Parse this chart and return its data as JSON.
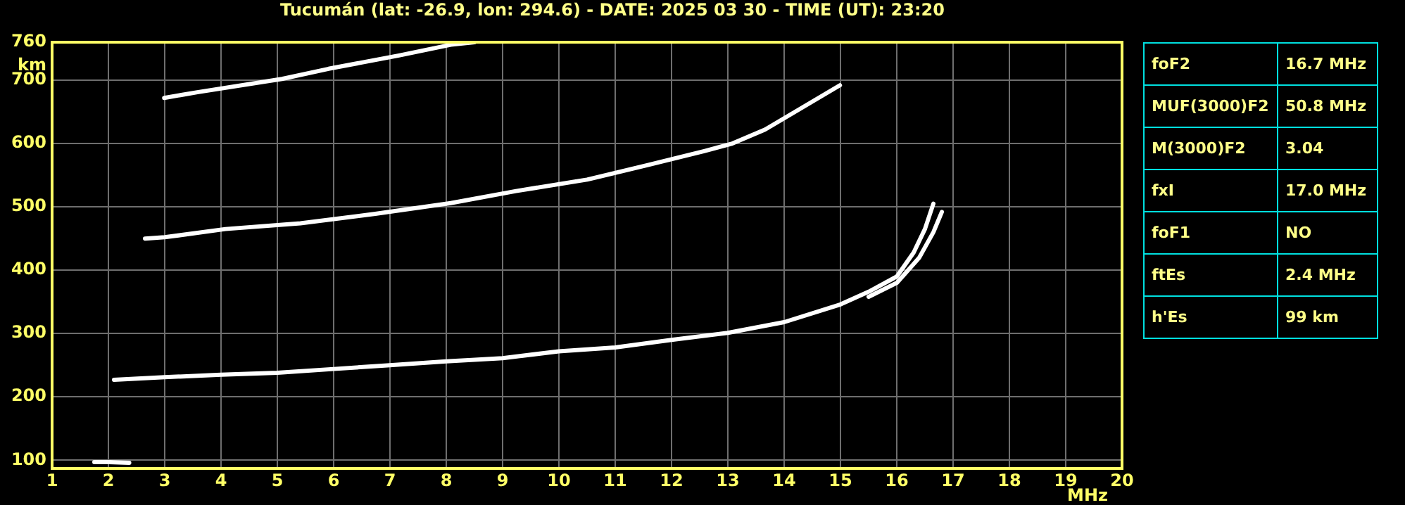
{
  "chart_data": {
    "type": "line",
    "title": "Tucumán (lat: -26.9, lon: 294.6) - DATE: 2025 03 30 - TIME (UT): 23:20",
    "xlabel": "MHz",
    "ylabel": "km",
    "xlim": [
      1,
      20
    ],
    "xticks": [
      1,
      2,
      3,
      4,
      5,
      6,
      7,
      8,
      9,
      10,
      11,
      12,
      13,
      14,
      15,
      16,
      17,
      18,
      19,
      20
    ],
    "ylim": [
      87,
      760
    ],
    "yticks": [
      100,
      200,
      300,
      400,
      500,
      600,
      700,
      760
    ],
    "grid": true,
    "legend": false,
    "marker": "none",
    "line_style": "solid",
    "series": [
      {
        "color": "#ffffff",
        "x": [
          1.75,
          2,
          2.37
        ],
        "values": [
          97,
          97,
          96
        ]
      },
      {
        "color": "#ffffff",
        "x": [
          2.1,
          3,
          4,
          5,
          6,
          7,
          8,
          9,
          10,
          11,
          12,
          13,
          14,
          15,
          15.5,
          16,
          16.3,
          16.5,
          16.65
        ],
        "values": [
          227,
          231,
          235,
          238,
          244,
          250,
          256,
          261,
          272,
          278,
          290,
          301,
          318,
          346,
          366,
          390,
          428,
          465,
          505
        ]
      },
      {
        "color": "#ffffff",
        "x": [
          15.5,
          16,
          16.4,
          16.65,
          16.8
        ],
        "values": [
          358,
          380,
          420,
          460,
          492
        ]
      },
      {
        "color": "#ffffff",
        "x": [
          2.65,
          3,
          4.08,
          5.41,
          6.74,
          8.08,
          9.24,
          10.5,
          11.58,
          12.58,
          13.08,
          13.66,
          14.99
        ],
        "values": [
          450,
          452,
          465,
          474,
          489,
          506,
          525,
          543,
          566,
          588,
          600,
          622,
          692
        ]
      },
      {
        "color": "#ffffff",
        "x": [
          2.99,
          3.58,
          5.08,
          5.91,
          7.16,
          8.08,
          8.5
        ],
        "values": [
          672,
          681,
          702,
          718,
          739,
          756,
          760
        ]
      }
    ],
    "annotations": [
      "foF2",
      "16.7 MHz",
      "MUF(3000)F2",
      "50.8 MHz",
      "M(3000)F2",
      "3.04",
      "fxI",
      "17.0 MHz",
      "foF1",
      "NO",
      "ftEs",
      "2.4 MHz",
      "h'Es",
      "99 km"
    ]
  }
}
